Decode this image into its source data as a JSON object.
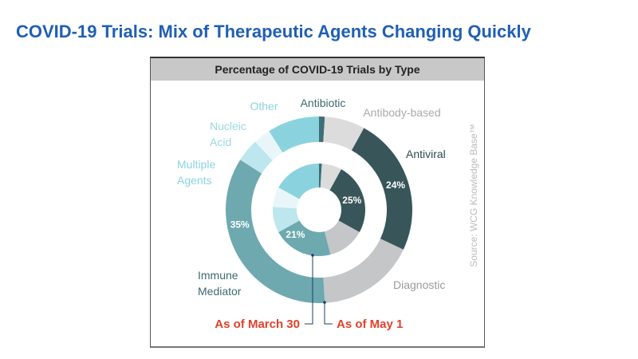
{
  "slide_title": "COVID-19 Trials: Mix of Therapeutic Agents Changing Quickly",
  "chart_data": {
    "type": "pie",
    "title": "Percentage of COVID-19 Trials by Type",
    "source": "Source: WCG Knowledge Base™",
    "categories": [
      "Antibiotic",
      "Antibody-based",
      "Antiviral",
      "Diagnostic",
      "Immune Mediator",
      "Multiple Agents",
      "Nucleic Acid",
      "Other"
    ],
    "colors": [
      "#3f6e76",
      "#dcdcdc",
      "#385659",
      "#c4c6c8",
      "#6ea9b0",
      "#bde6ee",
      "#e8f6fa",
      "#8ad3de"
    ],
    "label_colors": [
      "#3d6a70",
      "#aaaaaa",
      "#2e4a4d",
      "#9a9a9a",
      "#3d6a70",
      "#8ad3de",
      "#9ad8e3",
      "#8ad3de"
    ],
    "series": [
      {
        "name": "As of May 1",
        "ring": "outer",
        "values": [
          1,
          7,
          24,
          17,
          35,
          4,
          3,
          9
        ],
        "labels": {
          "Antiviral": "24%",
          "Immune Mediator": "35%"
        }
      },
      {
        "name": "As of March 30",
        "ring": "inner",
        "values": [
          1,
          7,
          25,
          13,
          21,
          9,
          7,
          17
        ],
        "labels": {
          "Antiviral": "25%",
          "Immune Mediator": "21%"
        }
      }
    ],
    "label_lines": {
      "Antibiotic": [
        "Antibiotic"
      ],
      "Antibody-based": [
        "Antibody-based"
      ],
      "Antiviral": [
        "Antiviral"
      ],
      "Diagnostic": [
        "Diagnostic"
      ],
      "Immune Mediator": [
        "Immune",
        "Mediator"
      ],
      "Multiple Agents": [
        "Multiple",
        "Agents"
      ],
      "Nucleic Acid": [
        "Nucleic",
        "Acid"
      ],
      "Other": [
        "Other"
      ]
    }
  }
}
